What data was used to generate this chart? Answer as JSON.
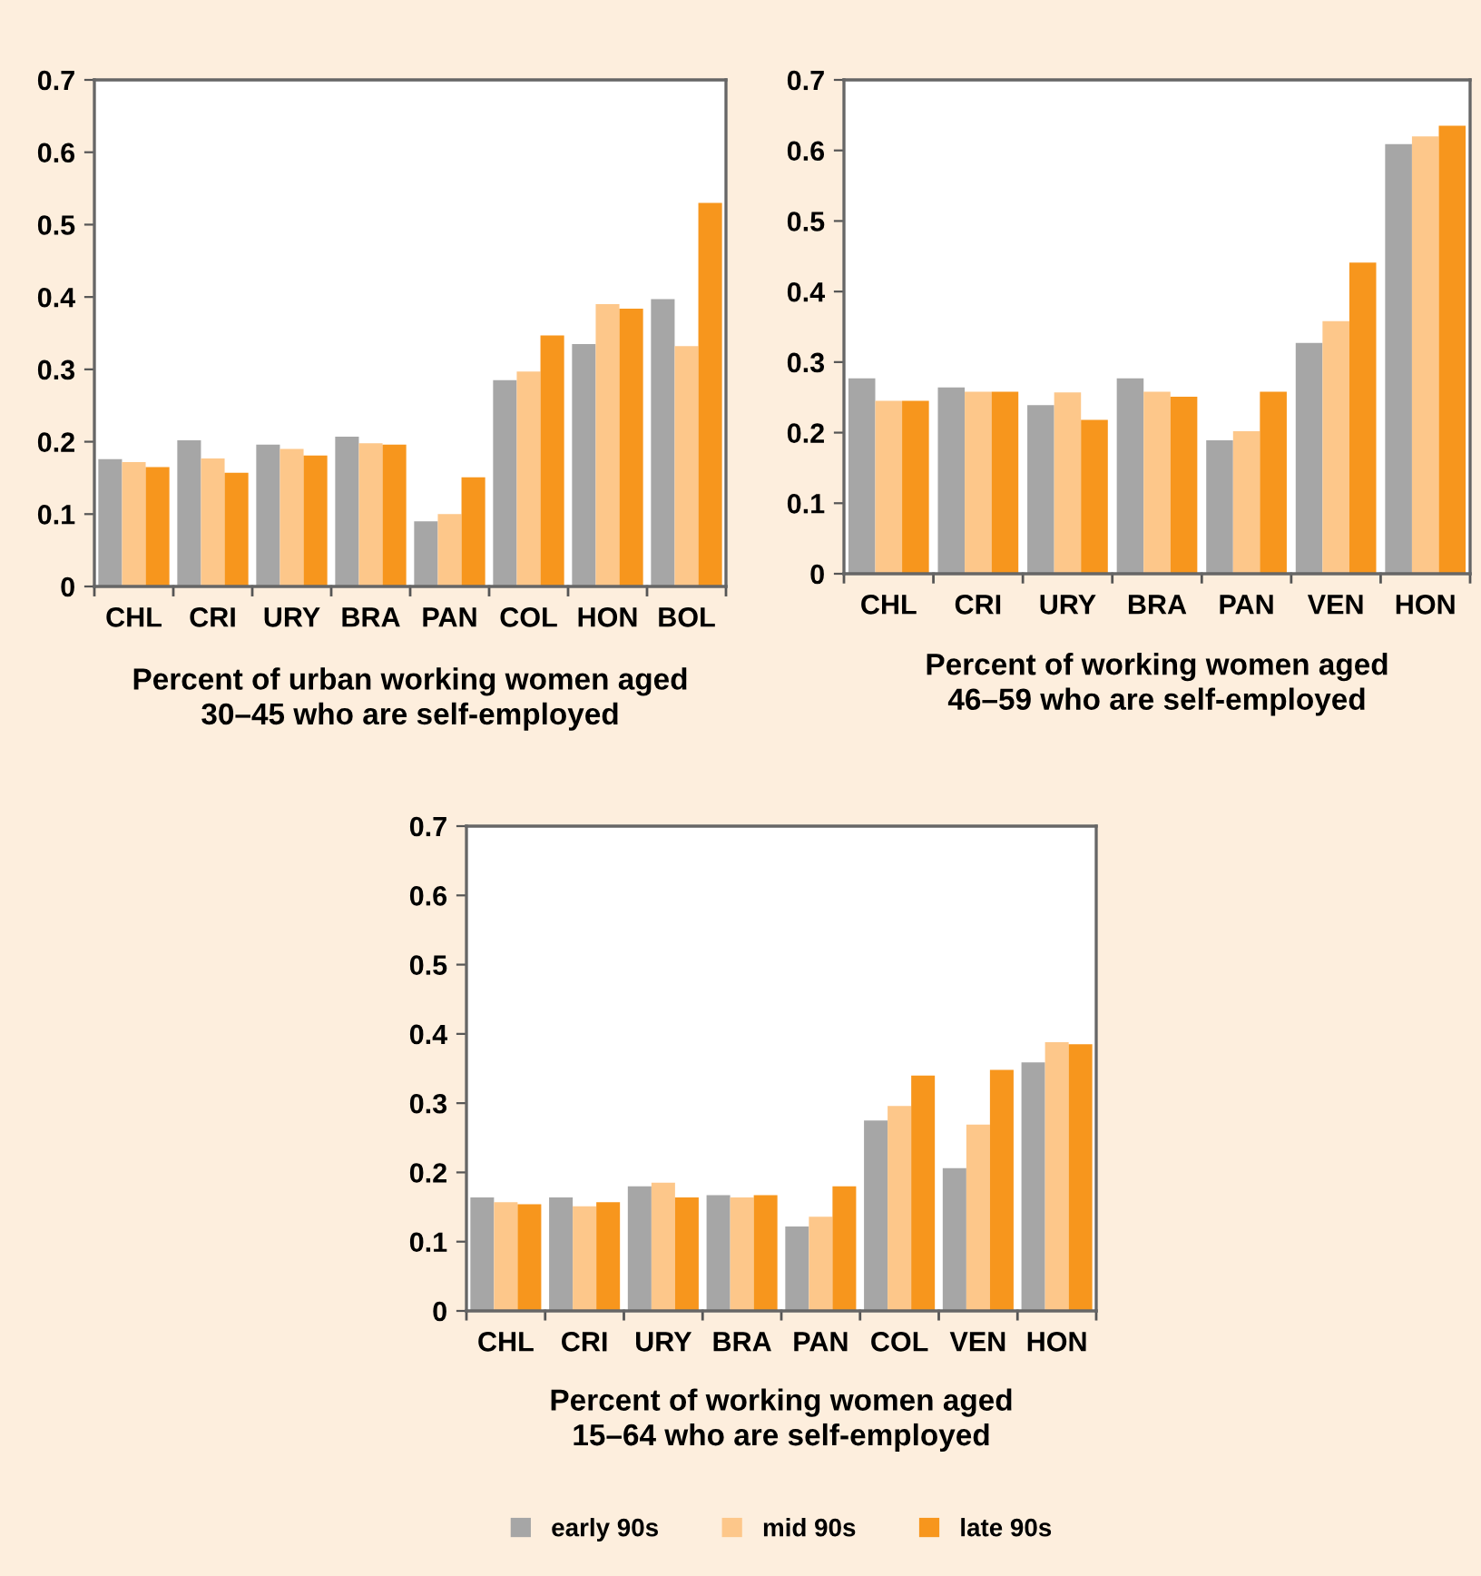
{
  "chart_data": [
    {
      "type": "bar",
      "title": "Percent of urban working women aged\n30–45 who are self-employed",
      "categories": [
        "CHL",
        "CRI",
        "URY",
        "BRA",
        "PAN",
        "COL",
        "HON",
        "BOL"
      ],
      "series": [
        {
          "color": "#a6a6a6",
          "values": [
            0.176,
            0.202,
            0.196,
            0.207,
            0.09,
            0.285,
            0.335,
            0.397
          ]
        },
        {
          "color": "#fdc78a",
          "values": [
            0.172,
            0.177,
            0.19,
            0.198,
            0.1,
            0.297,
            0.39,
            0.332
          ]
        },
        {
          "color": "#f7961d",
          "values": [
            0.165,
            0.157,
            0.181,
            0.196,
            0.151,
            0.347,
            0.384,
            0.53
          ]
        }
      ],
      "ylim": [
        0,
        0.7
      ],
      "yticks": [
        0,
        0.1,
        0.2,
        0.3,
        0.4,
        0.5,
        0.6,
        0.7
      ]
    },
    {
      "type": "bar",
      "title": "Percent of working women aged\n46–59 who are self-employed",
      "categories": [
        "CHL",
        "CRI",
        "URY",
        "BRA",
        "PAN",
        "VEN",
        "HON"
      ],
      "series": [
        {
          "color": "#a6a6a6",
          "values": [
            0.277,
            0.264,
            0.239,
            0.277,
            0.189,
            0.327,
            0.609
          ]
        },
        {
          "color": "#fdc78a",
          "values": [
            0.245,
            0.258,
            0.257,
            0.258,
            0.202,
            0.358,
            0.62
          ]
        },
        {
          "color": "#f7961d",
          "values": [
            0.245,
            0.258,
            0.218,
            0.251,
            0.258,
            0.441,
            0.635
          ]
        }
      ],
      "ylim": [
        0,
        0.7
      ],
      "yticks": [
        0,
        0.1,
        0.2,
        0.3,
        0.4,
        0.5,
        0.6,
        0.7
      ]
    },
    {
      "type": "bar",
      "title": "Percent of working women aged\n15–64 who are self-employed",
      "categories": [
        "CHL",
        "CRI",
        "URY",
        "BRA",
        "PAN",
        "COL",
        "VEN",
        "HON"
      ],
      "series": [
        {
          "name": "early 90s",
          "color": "#a6a6a6",
          "values": [
            0.164,
            0.164,
            0.18,
            0.167,
            0.122,
            0.275,
            0.206,
            0.359
          ]
        },
        {
          "name": "mid 90s",
          "color": "#fdc78a",
          "values": [
            0.157,
            0.151,
            0.185,
            0.164,
            0.136,
            0.296,
            0.269,
            0.388
          ]
        },
        {
          "name": "late 90s",
          "color": "#f7961d",
          "values": [
            0.154,
            0.157,
            0.164,
            0.167,
            0.18,
            0.34,
            0.348,
            0.385
          ]
        }
      ],
      "ylim": [
        0,
        0.7
      ],
      "yticks": [
        0,
        0.1,
        0.2,
        0.3,
        0.4,
        0.5,
        0.6,
        0.7
      ],
      "legend": "bottom"
    }
  ]
}
